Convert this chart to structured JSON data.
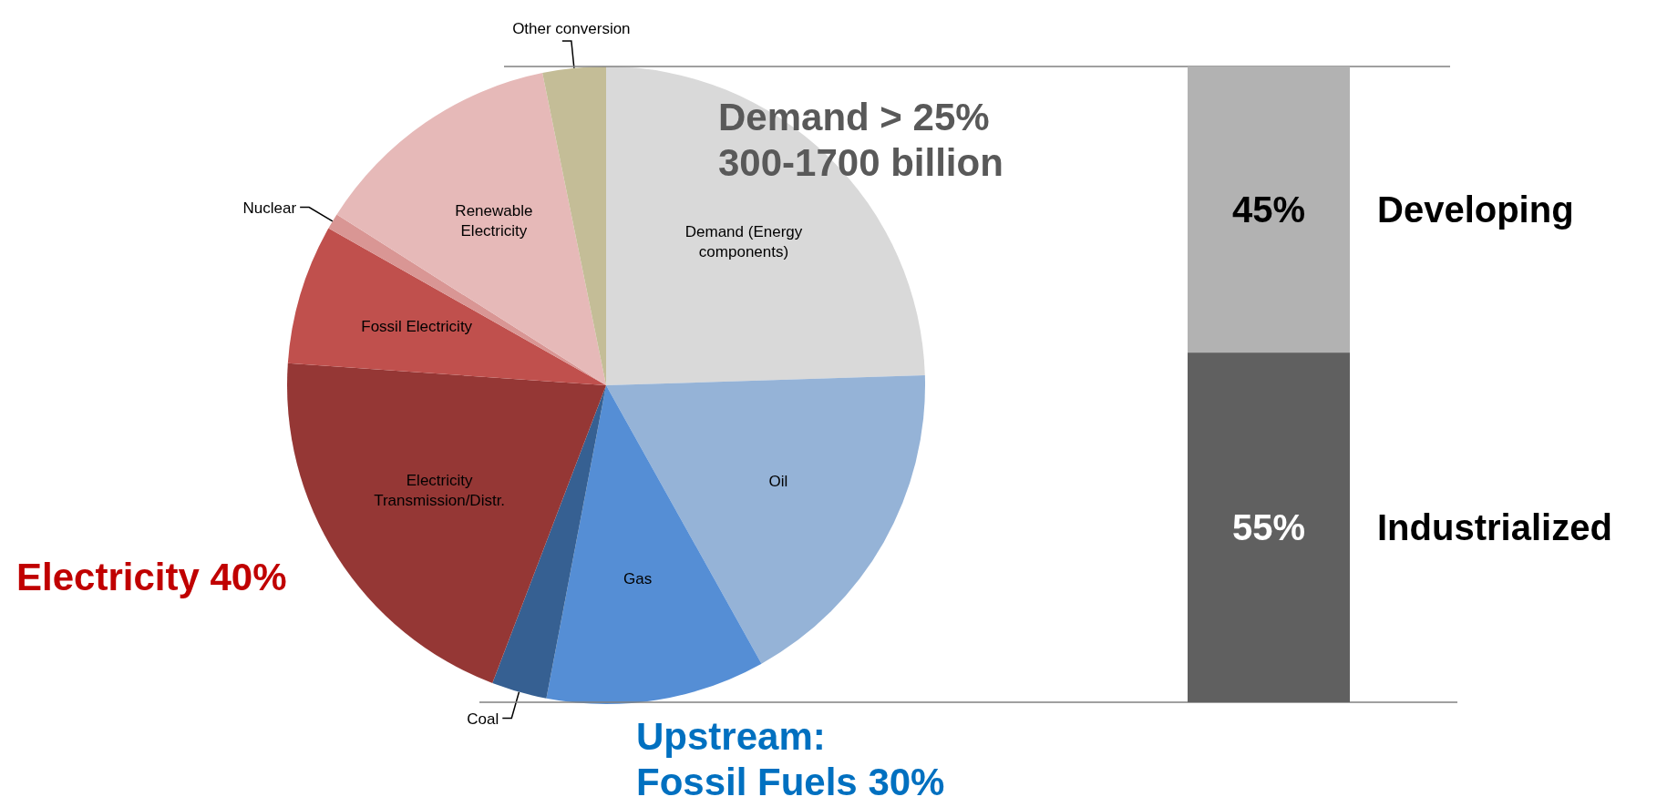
{
  "chart_data": [
    {
      "type": "pie",
      "categories": [
        "Demand (Energy components)",
        "Oil",
        "Gas",
        "Coal",
        "Electricity Transmission/Distr.",
        "Fossil Electricity",
        "Nuclear",
        "Renewable Electricity",
        "Other conversion"
      ],
      "values": [
        24.5,
        17.4,
        11.1,
        2.8,
        20.3,
        7.1,
        0.8,
        12.8,
        3.2
      ],
      "colors": [
        "#d9d9d9",
        "#95b3d7",
        "#558ed5",
        "#366092",
        "#953735",
        "#c0504d",
        "#d99694",
        "#e6b9b8",
        "#c4bd97"
      ],
      "annotations": [
        "Demand > 25%\n300-1700 billion",
        "Electricity 40%",
        "Upstream:\nFossil Fuels 30%"
      ]
    },
    {
      "type": "bar",
      "stacked": true,
      "categories": [
        null
      ],
      "series": [
        {
          "name": "Industrialized",
          "color": "#606060",
          "values": [
            55
          ],
          "value_labels": [
            "55%"
          ]
        },
        {
          "name": "Developing",
          "color": "#b2b2b2",
          "values": [
            45
          ],
          "value_labels": [
            "45%"
          ]
        }
      ]
    }
  ]
}
